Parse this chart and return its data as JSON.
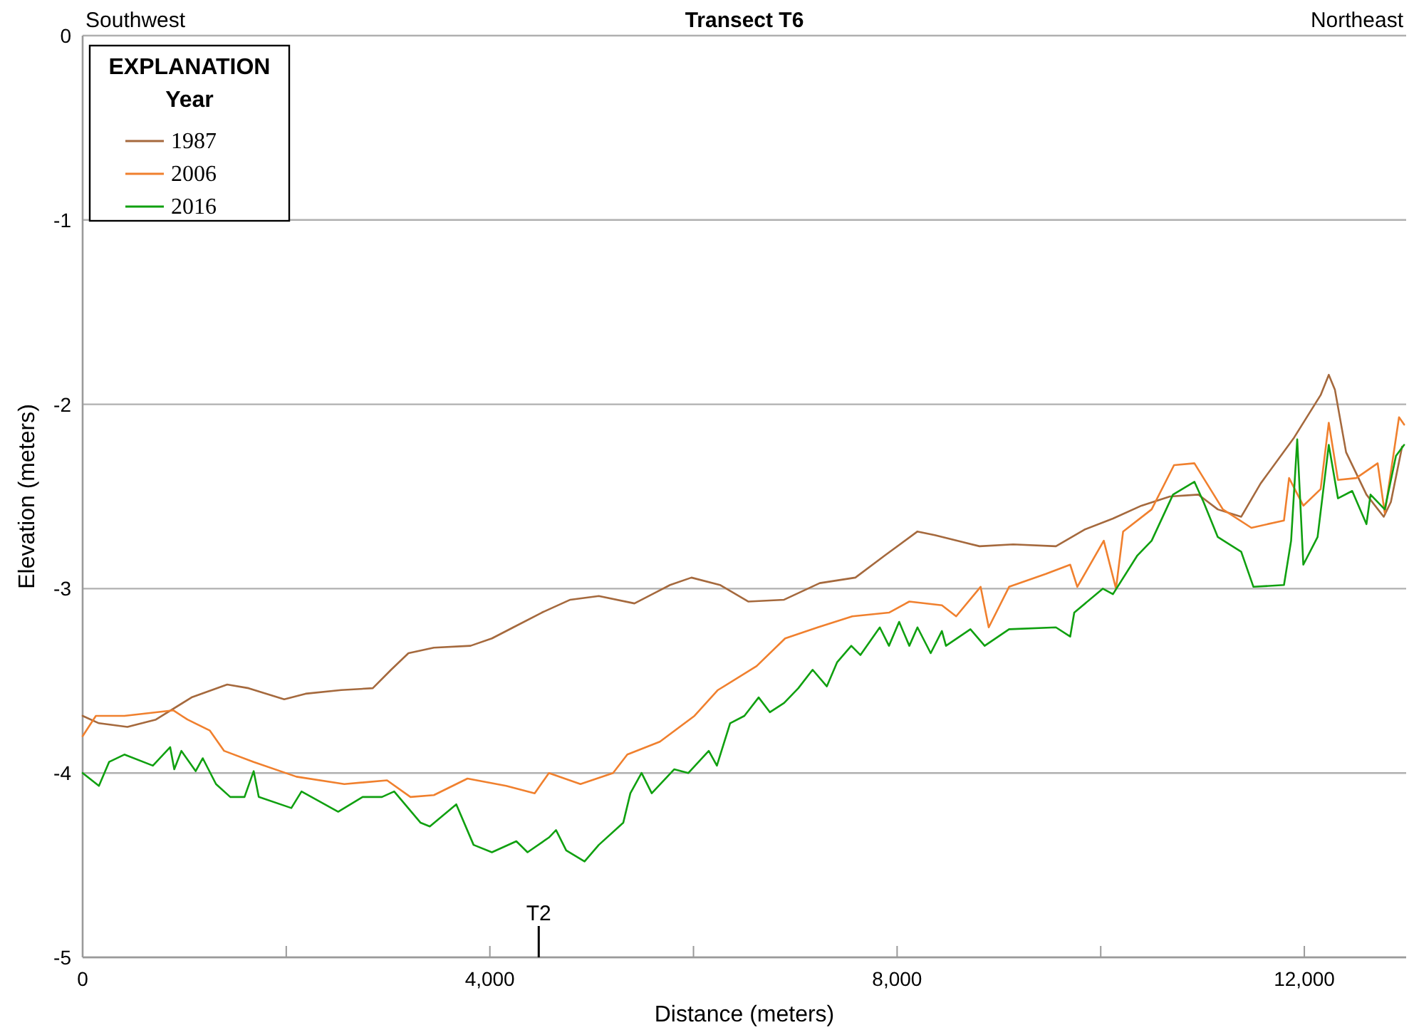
{
  "chart_data": {
    "type": "line",
    "title": "Transect T6",
    "xlabel": "Distance (meters)",
    "ylabel": "Elevation (meters)",
    "legend_title": "Year",
    "annotations": [
      "Southwest",
      "Northeast",
      "EXPLANATION"
    ],
    "xlim": [
      0,
      13000
    ],
    "xticks": [
      0,
      {
        "value": 2000,
        "label": null
      },
      {
        "value": 4000,
        "label": "4,000"
      },
      {
        "value": 6000,
        "label": null
      },
      {
        "value": 8000,
        "label": "8,000"
      },
      {
        "value": 10000,
        "label": null
      },
      {
        "value": 12000,
        "label": "12,000"
      }
    ],
    "ylim": [
      -5,
      0
    ],
    "yticks": [
      -5,
      -4,
      -3,
      -2,
      -1,
      0
    ],
    "grid": "y",
    "legend": "top left",
    "marker": "none",
    "line_style": "solid",
    "ref_lines": [
      {
        "axis": "x",
        "value": 4480,
        "label": "T2"
      }
    ],
    "series": [
      {
        "name": "1987",
        "color": "#a5693d",
        "x": [
          0,
          160,
          440,
          720,
          1070,
          1420,
          1630,
          1980,
          2190,
          2540,
          2850,
          3030,
          3200,
          3450,
          3810,
          4020,
          4230,
          4510,
          4790,
          5070,
          5420,
          5630,
          5770,
          5980,
          6260,
          6540,
          6890,
          7240,
          7590,
          7880,
          8200,
          8370,
          8810,
          9140,
          9560,
          9840,
          10120,
          10400,
          10680,
          10960,
          11150,
          11380,
          11570,
          11900,
          12160,
          12240,
          12300,
          12410,
          12610,
          12780,
          12850,
          12960
        ],
        "values": [
          -3.69,
          -3.73,
          -3.75,
          -3.71,
          -3.59,
          -3.52,
          -3.54,
          -3.6,
          -3.57,
          -3.55,
          -3.54,
          -3.44,
          -3.35,
          -3.32,
          -3.31,
          -3.27,
          -3.21,
          -3.13,
          -3.06,
          -3.04,
          -3.08,
          -3.02,
          -2.98,
          -2.94,
          -2.98,
          -3.07,
          -3.06,
          -2.97,
          -2.94,
          -2.82,
          -2.69,
          -2.71,
          -2.77,
          -2.76,
          -2.77,
          -2.68,
          -2.62,
          -2.55,
          -2.5,
          -2.49,
          -2.57,
          -2.61,
          -2.43,
          -2.18,
          -1.95,
          -1.84,
          -1.92,
          -2.26,
          -2.49,
          -2.61,
          -2.53,
          -2.23
        ]
      },
      {
        "name": "2006",
        "color": "#f0802e",
        "x": [
          0,
          130,
          410,
          890,
          1030,
          1250,
          1390,
          1680,
          2100,
          2570,
          2990,
          3220,
          3450,
          3780,
          4160,
          4440,
          4580,
          4890,
          5210,
          5350,
          5670,
          6010,
          6240,
          6620,
          6900,
          7220,
          7560,
          7920,
          8120,
          8440,
          8580,
          8820,
          8900,
          9100,
          9460,
          9700,
          9770,
          10030,
          10150,
          10220,
          10500,
          10720,
          10920,
          11200,
          11480,
          11800,
          11850,
          11990,
          12160,
          12240,
          12330,
          12510,
          12720,
          12790,
          12930,
          12980
        ],
        "values": [
          -3.8,
          -3.69,
          -3.69,
          -3.66,
          -3.71,
          -3.77,
          -3.88,
          -3.94,
          -4.02,
          -4.06,
          -4.04,
          -4.13,
          -4.12,
          -4.03,
          -4.07,
          -4.11,
          -4,
          -4.06,
          -4,
          -3.9,
          -3.83,
          -3.69,
          -3.55,
          -3.42,
          -3.27,
          -3.21,
          -3.15,
          -3.13,
          -3.07,
          -3.09,
          -3.15,
          -2.99,
          -3.21,
          -2.99,
          -2.92,
          -2.87,
          -2.99,
          -2.74,
          -3,
          -2.69,
          -2.57,
          -2.33,
          -2.32,
          -2.57,
          -2.67,
          -2.63,
          -2.4,
          -2.55,
          -2.46,
          -2.1,
          -2.41,
          -2.4,
          -2.32,
          -2.59,
          -2.07,
          -2.11
        ]
      },
      {
        "name": "2016",
        "color": "#10a010",
        "x": [
          0,
          160,
          260,
          410,
          690,
          860,
          900,
          970,
          1110,
          1180,
          1310,
          1450,
          1590,
          1680,
          1730,
          2050,
          2150,
          2510,
          2750,
          2940,
          3060,
          3320,
          3410,
          3670,
          3840,
          4020,
          4260,
          4370,
          4580,
          4650,
          4750,
          4930,
          5070,
          5310,
          5380,
          5490,
          5590,
          5810,
          5950,
          6150,
          6230,
          6360,
          6500,
          6640,
          6750,
          6890,
          7030,
          7170,
          7310,
          7410,
          7550,
          7640,
          7830,
          7920,
          8020,
          8120,
          8200,
          8330,
          8440,
          8480,
          8720,
          8860,
          9100,
          9560,
          9700,
          9740,
          10020,
          10120,
          10360,
          10500,
          10710,
          10920,
          11010,
          11150,
          11380,
          11500,
          11800,
          11870,
          11930,
          11990,
          12130,
          12240,
          12330,
          12470,
          12610,
          12650,
          12790,
          12900,
          12980
        ],
        "values": [
          -4,
          -4.07,
          -3.94,
          -3.9,
          -3.96,
          -3.86,
          -3.98,
          -3.88,
          -3.99,
          -3.92,
          -4.06,
          -4.13,
          -4.13,
          -3.99,
          -4.13,
          -4.19,
          -4.1,
          -4.21,
          -4.13,
          -4.13,
          -4.1,
          -4.27,
          -4.29,
          -4.17,
          -4.39,
          -4.43,
          -4.37,
          -4.43,
          -4.35,
          -4.31,
          -4.42,
          -4.48,
          -4.39,
          -4.27,
          -4.11,
          -4,
          -4.11,
          -3.98,
          -4,
          -3.88,
          -3.96,
          -3.73,
          -3.69,
          -3.59,
          -3.67,
          -3.62,
          -3.54,
          -3.44,
          -3.53,
          -3.4,
          -3.31,
          -3.36,
          -3.21,
          -3.31,
          -3.18,
          -3.31,
          -3.21,
          -3.35,
          -3.23,
          -3.31,
          -3.22,
          -3.31,
          -3.22,
          -3.21,
          -3.26,
          -3.13,
          -3,
          -3.03,
          -2.82,
          -2.74,
          -2.49,
          -2.42,
          -2.53,
          -2.72,
          -2.8,
          -2.99,
          -2.98,
          -2.74,
          -2.19,
          -2.87,
          -2.72,
          -2.22,
          -2.51,
          -2.47,
          -2.65,
          -2.49,
          -2.57,
          -2.28,
          -2.22
        ]
      }
    ]
  }
}
